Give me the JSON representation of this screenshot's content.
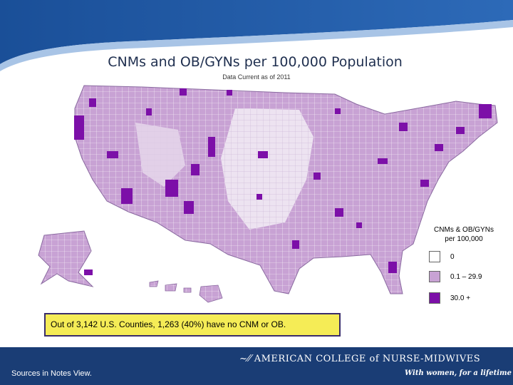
{
  "slide": {
    "title": "CNMs and OB/GYNs per 100,000 Population",
    "subtitle": "Data Current as of 2011"
  },
  "colors": {
    "header_blue": "#1f5aa8",
    "footer_blue": "#1a3d75",
    "none": "#ffffff",
    "low": "#c8a2d4",
    "high": "#7c0fa8",
    "callout_fill": "#f5ec56"
  },
  "legend": {
    "title_line1": "CNMs & OB/GYNs",
    "title_line2": "per 100,000",
    "items": [
      {
        "label": "0",
        "color": "#ffffff"
      },
      {
        "label": "0.1 – 29.9",
        "color": "#c8a2d4"
      },
      {
        "label": "30.0 +",
        "color": "#7c0fa8"
      }
    ]
  },
  "callout": {
    "text": "Out of 3,142 U.S. Counties, 1,263 (40%) have no CNM or OB."
  },
  "footer": {
    "sources": "Sources in Notes View.",
    "org_name": "AMERICAN COLLEGE of NURSE-MIDWIVES",
    "tagline": "With women, for a lifetime"
  }
}
